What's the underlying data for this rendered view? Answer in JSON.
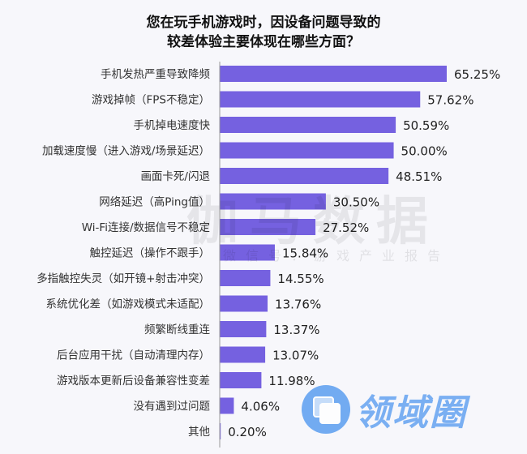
{
  "chart_data": {
    "type": "bar",
    "orientation": "horizontal",
    "title_line1": "您在玩手机游戏时，因设备问题导致的",
    "title_line2": "较差体验主要体现在哪些方面？",
    "categories": [
      "手机发热严重导致降频",
      "游戏掉帧（FPS不稳定）",
      "手机掉电速度快",
      "加载速度慢（进入游戏/场景延迟）",
      "画面卡死/闪退",
      "网络延迟（高Ping值）",
      "Wi-Fi连接/数据信号不稳定",
      "触控延迟（操作不跟手）",
      "多指触控失灵（如开镜+射击冲突）",
      "系统优化差（如游戏模式未适配）",
      "频繁断线重连",
      "后台应用干扰（自动清理内存）",
      "游戏版本更新后设备兼容性变差",
      "没有遇到过问题",
      "其他"
    ],
    "values": [
      65.25,
      57.62,
      50.59,
      50.0,
      48.51,
      30.5,
      27.52,
      15.84,
      14.55,
      13.76,
      13.37,
      13.07,
      11.98,
      4.06,
      0.2
    ],
    "labels": [
      "65.25%",
      "57.62%",
      "50.59%",
      "50.00%",
      "48.51%",
      "30.50%",
      "27.52%",
      "15.84%",
      "14.55%",
      "13.76%",
      "13.37%",
      "13.07%",
      "11.98%",
      "4.06%",
      "0.20%"
    ],
    "unit": "%",
    "xlim": [
      0,
      70
    ],
    "grid": false,
    "bar_color": "#7561e0"
  },
  "watermark": {
    "main": "伽马数据",
    "sub": "微信号：游戏产业报告",
    "logo": "领域圈"
  }
}
